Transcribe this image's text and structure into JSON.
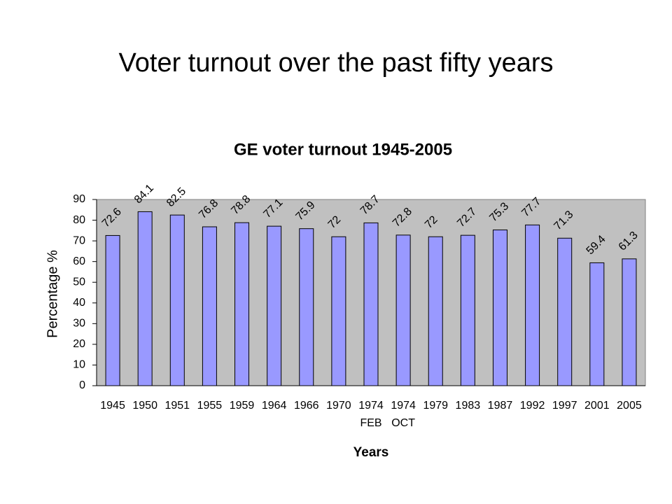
{
  "slide_title": "Voter turnout over the past fifty years",
  "chart_data": {
    "type": "bar",
    "title": "GE voter turnout 1945-2005",
    "x_label": "Years",
    "y_label": "Percentage %",
    "categories": [
      "1945",
      "1950",
      "1951",
      "1955",
      "1959",
      "1964",
      "1966",
      "1970",
      "1974",
      "1974",
      "1979",
      "1983",
      "1987",
      "1992",
      "1997",
      "2001",
      "2005"
    ],
    "category_sublabels": [
      null,
      null,
      null,
      null,
      null,
      null,
      null,
      null,
      "FEB",
      "OCT",
      null,
      null,
      null,
      null,
      null,
      null,
      null
    ],
    "values": [
      72.6,
      84.1,
      82.5,
      76.8,
      78.8,
      77.1,
      75.9,
      72,
      78.7,
      72.8,
      72,
      72.7,
      75.3,
      77.7,
      71.3,
      59.4,
      61.3
    ],
    "color": "#9999ff",
    "plot_background": "#c0c0c0",
    "ylim": [
      0,
      90
    ],
    "yticks": [
      0,
      10,
      20,
      30,
      40,
      50,
      60,
      70,
      80,
      90
    ]
  }
}
